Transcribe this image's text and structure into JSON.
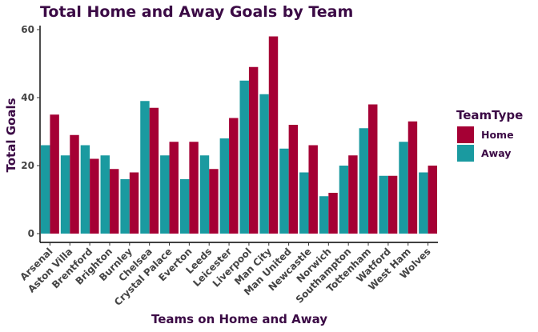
{
  "chart_data": {
    "type": "bar",
    "title": "Total Home and Away Goals by Team",
    "xlabel": "Teams on Home and Away",
    "ylabel": "Total Goals",
    "ylim": [
      0,
      61
    ],
    "yticks": [
      0,
      20,
      40,
      60
    ],
    "grid": false,
    "legend_position": "right",
    "legend_title": "TeamType",
    "categories": [
      "Arsenal",
      "Aston Villa",
      "Brentford",
      "Brighton",
      "Burnley",
      "Chelsea",
      "Crystal Palace",
      "Everton",
      "Leeds",
      "Leicester",
      "Liverpool",
      "Man City",
      "Man United",
      "Newcastle",
      "Norwich",
      "Southampton",
      "Tottenham",
      "Watford",
      "West Ham",
      "Wolves"
    ],
    "series": [
      {
        "name": "Home",
        "color": "#a50034",
        "values": [
          35,
          29,
          22,
          19,
          18,
          37,
          27,
          27,
          19,
          34,
          49,
          58,
          32,
          26,
          12,
          23,
          38,
          17,
          33,
          20
        ]
      },
      {
        "name": "Away",
        "color": "#1a9aa0",
        "values": [
          26,
          23,
          26,
          23,
          16,
          39,
          23,
          16,
          23,
          28,
          45,
          41,
          25,
          18,
          11,
          20,
          31,
          17,
          27,
          18
        ]
      }
    ]
  }
}
